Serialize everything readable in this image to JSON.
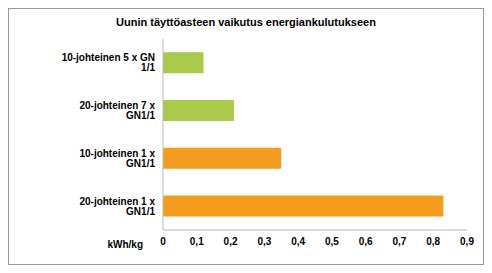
{
  "chart_data": {
    "type": "bar",
    "title": "Uunin täyttöasteen vaikutus energiankulutukseen",
    "x_label": "kWh/kg",
    "orientation": "horizontal",
    "categories": [
      "10-johteinen 5 x GN 1/1",
      "20-johteinen 7 x GN1/1",
      "10-johteinen 1 x GN1/1",
      "20-johteinen 1 x GN1/1"
    ],
    "values": [
      0.12,
      0.21,
      0.35,
      0.83
    ],
    "colors": [
      "#a8c94a",
      "#a8c94a",
      "#f39c1e",
      "#f39c1e"
    ],
    "xlim": [
      0,
      0.9
    ],
    "xticks": [
      0,
      {
        "value": 0.1,
        "label": "0,1"
      },
      {
        "value": 0.2,
        "label": "0,2"
      },
      {
        "value": 0.3,
        "label": "0,3"
      },
      {
        "value": 0.4,
        "label": "0,4"
      },
      {
        "value": 0.5,
        "label": "0,5"
      },
      {
        "value": 0.6,
        "label": "0,6"
      },
      {
        "value": 0.7,
        "label": "0,7"
      },
      {
        "value": 0.8,
        "label": "0,8"
      },
      {
        "value": 0.9,
        "label": "0,9"
      }
    ],
    "grid": false,
    "data_labels": false
  }
}
